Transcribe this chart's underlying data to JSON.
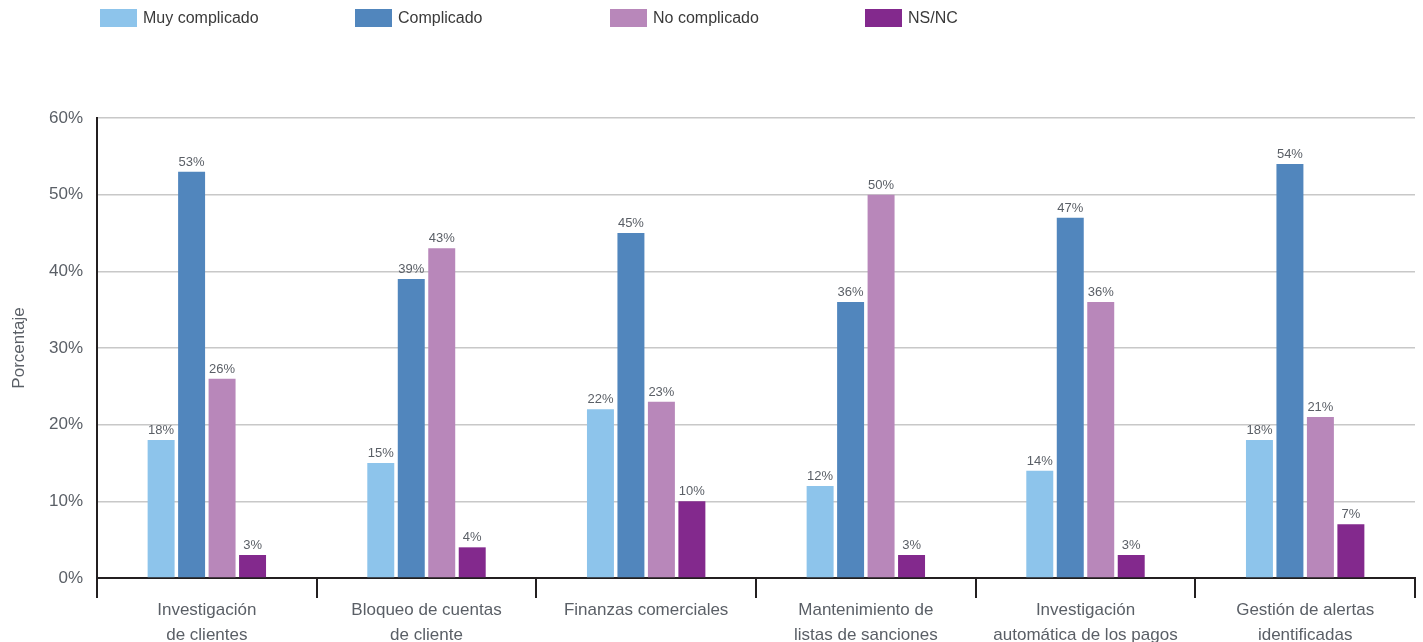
{
  "chart_data": {
    "type": "bar",
    "categories": [
      "Investigación\nde clientes",
      "Bloqueo de cuentas\nde cliente",
      "Finanzas comerciales",
      "Mantenimiento de\nlistas de sanciones",
      "Investigación\nautomática de los pagos",
      "Gestión de alertas\nidentificadas"
    ],
    "ylabel": "Porcentaje",
    "ylim": [
      0,
      60
    ],
    "yticks": [
      {
        "value": 0,
        "label": "0%"
      },
      {
        "value": 10,
        "label": "10%"
      },
      {
        "value": 20,
        "label": "20%"
      },
      {
        "value": 30,
        "label": "30%"
      },
      {
        "value": 40,
        "label": "40%"
      },
      {
        "value": 50,
        "label": "50%"
      },
      {
        "value": 60,
        "label": "60%"
      }
    ],
    "series": [
      {
        "name": "Muy complicado",
        "color": "#8dc4eb",
        "values": [
          18,
          15,
          22,
          12,
          14,
          18
        ],
        "value_labels": [
          "18%",
          "15%",
          "22%",
          "12%",
          "14%",
          "18%"
        ]
      },
      {
        "name": "Complicado",
        "color": "#5186bd",
        "values": [
          53,
          39,
          45,
          36,
          47,
          54
        ],
        "value_labels": [
          "53%",
          "39%",
          "45%",
          "36%",
          "47%",
          "54%"
        ]
      },
      {
        "name": "No complicado",
        "color": "#b887ba",
        "values": [
          26,
          43,
          23,
          50,
          36,
          21
        ],
        "value_labels": [
          "26%",
          "43%",
          "23%",
          "50%",
          "36%",
          "21%"
        ]
      },
      {
        "name": "NS/NC",
        "color": "#83298d",
        "values": [
          3,
          4,
          10,
          3,
          3,
          7
        ],
        "value_labels": [
          "3%",
          "4%",
          "10%",
          "3%",
          "3%",
          "7%"
        ]
      }
    ],
    "grid": "y",
    "legend": "top left"
  }
}
